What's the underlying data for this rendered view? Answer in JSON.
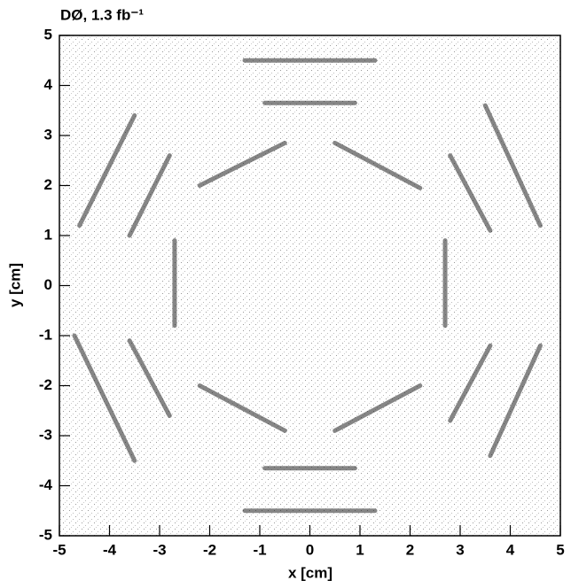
{
  "chart_data": {
    "type": "scatter",
    "title": "DØ, 1.3 fb⁻¹",
    "xlabel": "x [cm]",
    "ylabel": "y [cm]",
    "xlim": [
      -5,
      5
    ],
    "ylim": [
      -5,
      5
    ],
    "xticks": [
      -5,
      -4,
      -3,
      -2,
      -1,
      0,
      1,
      2,
      3,
      4,
      5
    ],
    "yticks": [
      -5,
      -4,
      -3,
      -2,
      -1,
      0,
      1,
      2,
      3,
      4,
      5
    ],
    "color": "#222222",
    "bands": [
      {
        "x": [
          -0.9,
          0.9
        ],
        "y": [
          3.65,
          3.65
        ]
      },
      {
        "x": [
          -0.9,
          0.9
        ],
        "y": [
          -3.65,
          -3.65
        ]
      },
      {
        "x": [
          -1.3,
          1.3
        ],
        "y": [
          4.5,
          4.5
        ]
      },
      {
        "x": [
          -1.3,
          1.3
        ],
        "y": [
          -4.5,
          -4.5
        ]
      },
      {
        "x": [
          -2.2,
          -0.5
        ],
        "y": [
          2.0,
          2.85
        ]
      },
      {
        "x": [
          0.5,
          2.2
        ],
        "y": [
          2.85,
          1.95
        ]
      },
      {
        "x": [
          -2.7,
          -2.7
        ],
        "y": [
          -0.8,
          0.9
        ]
      },
      {
        "x": [
          2.7,
          2.7
        ],
        "y": [
          -0.8,
          0.9
        ]
      },
      {
        "x": [
          -2.2,
          -0.5
        ],
        "y": [
          -2.0,
          -2.9
        ]
      },
      {
        "x": [
          0.5,
          2.2
        ],
        "y": [
          -2.9,
          -2.0
        ]
      },
      {
        "x": [
          2.8,
          3.6
        ],
        "y": [
          2.6,
          1.1
        ]
      },
      {
        "x": [
          3.5,
          4.6
        ],
        "y": [
          3.6,
          1.2
        ]
      },
      {
        "x": [
          -3.6,
          -2.8
        ],
        "y": [
          -1.1,
          -2.6
        ]
      },
      {
        "x": [
          -4.7,
          -3.5
        ],
        "y": [
          -1.0,
          -3.5
        ]
      },
      {
        "x": [
          3.6,
          2.8
        ],
        "y": [
          -1.2,
          -2.7
        ]
      },
      {
        "x": [
          4.6,
          3.6
        ],
        "y": [
          -1.2,
          -3.4
        ]
      },
      {
        "x": [
          -3.5,
          -4.6
        ],
        "y": [
          3.4,
          1.2
        ]
      },
      {
        "x": [
          -2.8,
          -3.6
        ],
        "y": [
          2.6,
          1.0
        ]
      }
    ]
  }
}
